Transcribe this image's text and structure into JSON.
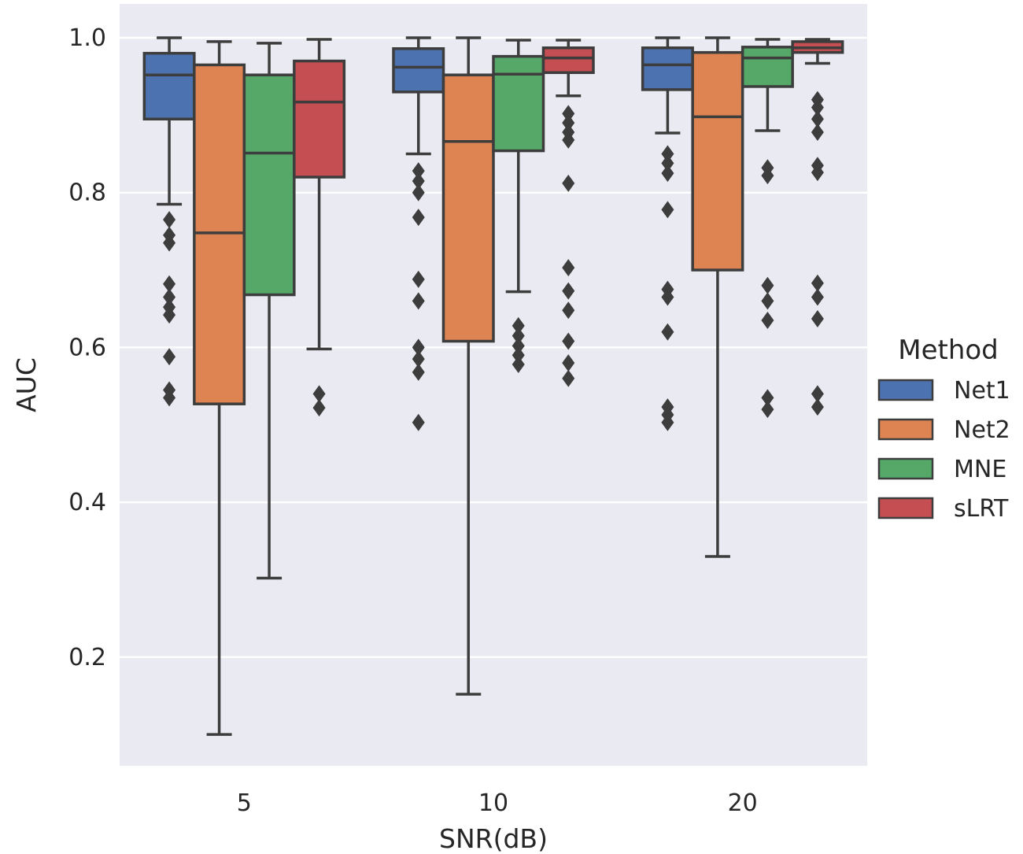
{
  "chart_data": {
    "type": "boxplot",
    "xlabel": "SNR(dB)",
    "ylabel": "AUC",
    "categories": [
      "5",
      "10",
      "20"
    ],
    "ylim": [
      0.06,
      1.04
    ],
    "yticks": [
      "0.2",
      "0.4",
      "0.6",
      "0.8",
      "1.0"
    ],
    "grid": true,
    "legend": {
      "title": "Method",
      "placement": "right"
    },
    "series": [
      {
        "name": "Net1",
        "color": "#4c72b0",
        "boxes": [
          {
            "whislo": 0.785,
            "q1": 0.895,
            "med": 0.952,
            "q3": 0.98,
            "whishi": 1.0,
            "fliers": [
              0.535,
              0.545,
              0.588,
              0.642,
              0.652,
              0.665,
              0.682,
              0.735,
              0.745,
              0.765
            ]
          },
          {
            "whislo": 0.85,
            "q1": 0.93,
            "med": 0.962,
            "q3": 0.986,
            "whishi": 1.0,
            "fliers": [
              0.503,
              0.568,
              0.585,
              0.6,
              0.66,
              0.688,
              0.768,
              0.8,
              0.815,
              0.828
            ]
          },
          {
            "whislo": 0.877,
            "q1": 0.933,
            "med": 0.965,
            "q3": 0.987,
            "whishi": 1.0,
            "fliers": [
              0.503,
              0.513,
              0.523,
              0.62,
              0.665,
              0.675,
              0.778,
              0.825,
              0.838,
              0.85
            ]
          }
        ]
      },
      {
        "name": "Net2",
        "color": "#dd8452",
        "boxes": [
          {
            "whislo": 0.1,
            "q1": 0.527,
            "med": 0.748,
            "q3": 0.965,
            "whishi": 0.995,
            "fliers": []
          },
          {
            "whislo": 0.152,
            "q1": 0.608,
            "med": 0.866,
            "q3": 0.952,
            "whishi": 1.0,
            "fliers": []
          },
          {
            "whislo": 0.33,
            "q1": 0.7,
            "med": 0.898,
            "q3": 0.981,
            "whishi": 1.0,
            "fliers": []
          }
        ]
      },
      {
        "name": "MNE",
        "color": "#55a868",
        "boxes": [
          {
            "whislo": 0.302,
            "q1": 0.668,
            "med": 0.851,
            "q3": 0.952,
            "whishi": 0.993,
            "fliers": []
          },
          {
            "whislo": 0.672,
            "q1": 0.854,
            "med": 0.953,
            "q3": 0.976,
            "whishi": 0.997,
            "fliers": [
              0.578,
              0.59,
              0.602,
              0.615,
              0.628
            ]
          },
          {
            "whislo": 0.88,
            "q1": 0.937,
            "med": 0.974,
            "q3": 0.988,
            "whishi": 0.998,
            "fliers": [
              0.52,
              0.535,
              0.635,
              0.66,
              0.68,
              0.822,
              0.832
            ]
          }
        ]
      },
      {
        "name": "sLRT",
        "color": "#c44e52",
        "boxes": [
          {
            "whislo": 0.598,
            "q1": 0.82,
            "med": 0.917,
            "q3": 0.97,
            "whishi": 0.998,
            "fliers": [
              0.522,
              0.54
            ]
          },
          {
            "whislo": 0.925,
            "q1": 0.955,
            "med": 0.974,
            "q3": 0.987,
            "whishi": 0.997,
            "fliers": [
              0.56,
              0.58,
              0.608,
              0.648,
              0.673,
              0.703,
              0.812,
              0.868,
              0.878,
              0.89,
              0.902
            ]
          },
          {
            "whislo": 0.967,
            "q1": 0.981,
            "med": 0.987,
            "q3": 0.995,
            "whishi": 0.998,
            "fliers": [
              0.523,
              0.54,
              0.637,
              0.665,
              0.683,
              0.826,
              0.835,
              0.878,
              0.895,
              0.91,
              0.92
            ]
          }
        ]
      }
    ]
  }
}
